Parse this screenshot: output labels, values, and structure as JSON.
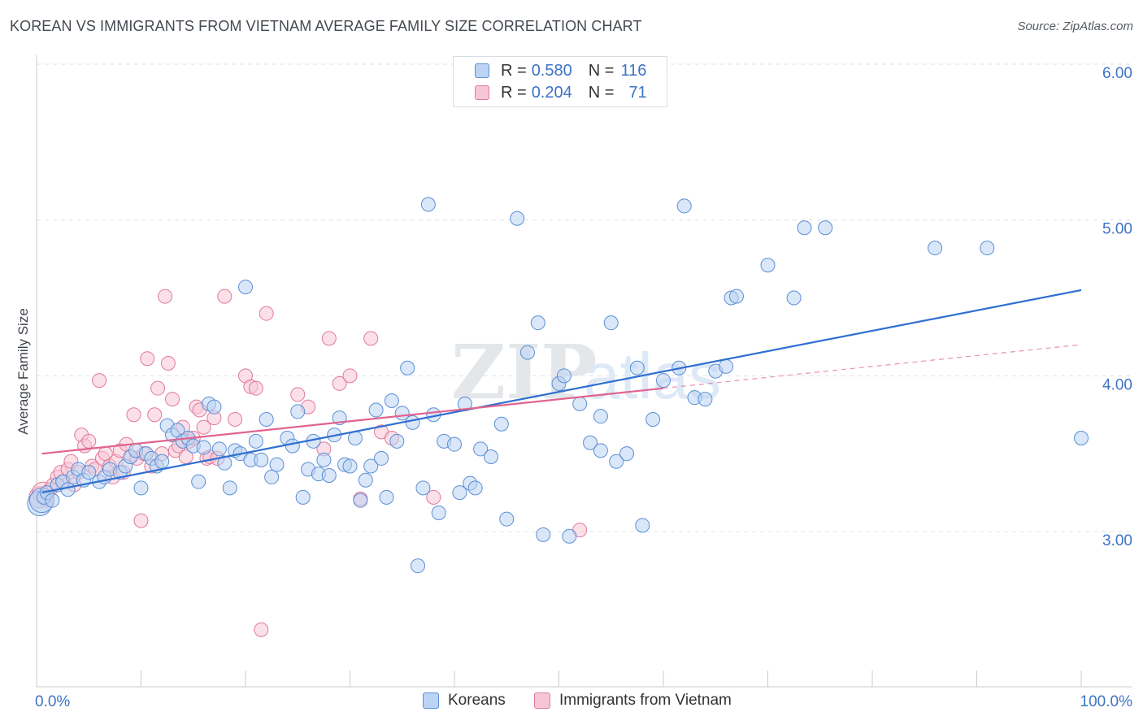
{
  "title": "KOREAN VS IMMIGRANTS FROM VIETNAM AVERAGE FAMILY SIZE CORRELATION CHART",
  "source": "Source: ZipAtlas.com",
  "legend": {
    "rows": [
      {
        "r_label": "R =",
        "r_value": "0.580",
        "n_label": "N =",
        "n_value": "116"
      },
      {
        "r_label": "R =",
        "r_value": "0.204",
        "n_label": "N =",
        "n_value": "71"
      }
    ]
  },
  "bottom_legend": [
    "Koreans",
    "Immigrants from Vietnam"
  ],
  "colors": {
    "blue_fill": "#bcd4f3",
    "blue_stroke": "#5b8fd6",
    "blue_line": "#2f6fd0",
    "pink_fill": "#f7c6d5",
    "pink_stroke": "#e07a9b",
    "pink_line": "#e0648f",
    "tick_label": "#3d73c5",
    "grid": "#dde1e6"
  },
  "chart_data": {
    "type": "scatter",
    "title": "KOREAN VS IMMIGRANTS FROM VIETNAM AVERAGE FAMILY SIZE CORRELATION CHART",
    "xlabel": "",
    "ylabel": "Average Family Size",
    "xlim": [
      0,
      100
    ],
    "ylim": [
      2.0,
      6.15
    ],
    "x_tick_labels": [
      "0.0%",
      "100.0%"
    ],
    "y_ticks": [
      3.0,
      4.0,
      5.0,
      6.0
    ],
    "y_tick_labels": [
      "3.00",
      "4.00",
      "5.00",
      "6.00"
    ],
    "grid": true,
    "legend_position": "top-center",
    "series": [
      {
        "name": "Koreans",
        "r": 0.58,
        "n": 116,
        "trend": {
          "x": [
            0.5,
            100
          ],
          "y": [
            3.25,
            4.55
          ]
        },
        "points": [
          [
            0.3,
            3.18
          ],
          [
            0.5,
            3.2
          ],
          [
            0.7,
            3.22
          ],
          [
            1,
            3.25
          ],
          [
            1.5,
            3.2
          ],
          [
            2,
            3.3
          ],
          [
            2.5,
            3.32
          ],
          [
            3,
            3.27
          ],
          [
            3.5,
            3.35
          ],
          [
            4,
            3.4
          ],
          [
            4.5,
            3.33
          ],
          [
            5,
            3.38
          ],
          [
            6,
            3.32
          ],
          [
            6.5,
            3.35
          ],
          [
            7,
            3.4
          ],
          [
            8,
            3.38
          ],
          [
            8.5,
            3.42
          ],
          [
            9,
            3.48
          ],
          [
            9.5,
            3.52
          ],
          [
            10,
            3.28
          ],
          [
            10.5,
            3.5
          ],
          [
            11,
            3.47
          ],
          [
            11.5,
            3.42
          ],
          [
            12,
            3.45
          ],
          [
            12.5,
            3.68
          ],
          [
            13,
            3.62
          ],
          [
            13.5,
            3.65
          ],
          [
            14,
            3.58
          ],
          [
            14.5,
            3.6
          ],
          [
            15,
            3.55
          ],
          [
            15.5,
            3.32
          ],
          [
            16,
            3.54
          ],
          [
            16.5,
            3.82
          ],
          [
            17,
            3.8
          ],
          [
            17.5,
            3.53
          ],
          [
            18,
            3.44
          ],
          [
            18.5,
            3.28
          ],
          [
            19,
            3.52
          ],
          [
            19.5,
            3.5
          ],
          [
            20,
            4.57
          ],
          [
            20.5,
            3.46
          ],
          [
            21,
            3.58
          ],
          [
            21.5,
            3.46
          ],
          [
            22,
            3.72
          ],
          [
            22.5,
            3.35
          ],
          [
            23,
            3.43
          ],
          [
            24,
            3.6
          ],
          [
            24.5,
            3.55
          ],
          [
            25,
            3.77
          ],
          [
            25.5,
            3.22
          ],
          [
            26,
            3.4
          ],
          [
            26.5,
            3.58
          ],
          [
            27,
            3.37
          ],
          [
            27.5,
            3.46
          ],
          [
            28,
            3.36
          ],
          [
            28.5,
            3.62
          ],
          [
            29,
            3.73
          ],
          [
            29.5,
            3.43
          ],
          [
            30,
            3.42
          ],
          [
            30.5,
            3.6
          ],
          [
            31,
            3.2
          ],
          [
            31.5,
            3.33
          ],
          [
            32,
            3.42
          ],
          [
            32.5,
            3.78
          ],
          [
            33,
            3.47
          ],
          [
            33.5,
            3.22
          ],
          [
            34,
            3.84
          ],
          [
            34.5,
            3.58
          ],
          [
            35,
            3.76
          ],
          [
            35.5,
            4.05
          ],
          [
            36,
            3.7
          ],
          [
            36.5,
            2.78
          ],
          [
            37,
            3.28
          ],
          [
            37.5,
            5.1
          ],
          [
            38,
            3.75
          ],
          [
            38.5,
            3.12
          ],
          [
            39,
            3.58
          ],
          [
            40,
            3.56
          ],
          [
            40.5,
            3.25
          ],
          [
            41,
            3.82
          ],
          [
            41.5,
            3.31
          ],
          [
            42,
            3.28
          ],
          [
            42.5,
            3.53
          ],
          [
            43.5,
            3.48
          ],
          [
            44.5,
            3.69
          ],
          [
            45,
            3.08
          ],
          [
            46,
            5.01
          ],
          [
            47,
            4.15
          ],
          [
            48,
            4.34
          ],
          [
            48.5,
            2.98
          ],
          [
            50,
            3.95
          ],
          [
            50.5,
            4.0
          ],
          [
            51,
            2.97
          ],
          [
            52,
            3.82
          ],
          [
            53,
            3.57
          ],
          [
            54,
            3.52
          ],
          [
            54,
            3.74
          ],
          [
            55,
            4.34
          ],
          [
            55.5,
            3.45
          ],
          [
            56.5,
            3.5
          ],
          [
            57.5,
            4.05
          ],
          [
            58,
            3.04
          ],
          [
            59,
            3.72
          ],
          [
            60,
            3.97
          ],
          [
            61.5,
            4.05
          ],
          [
            62,
            5.09
          ],
          [
            63,
            3.86
          ],
          [
            64,
            3.85
          ],
          [
            65,
            4.03
          ],
          [
            66,
            4.06
          ],
          [
            66.5,
            4.5
          ],
          [
            67,
            4.51
          ],
          [
            70,
            4.71
          ],
          [
            72.5,
            4.5
          ],
          [
            73.5,
            4.95
          ],
          [
            75.5,
            4.95
          ],
          [
            86,
            4.82
          ],
          [
            91,
            4.82
          ],
          [
            100,
            3.6
          ]
        ]
      },
      {
        "name": "Immigrants from Vietnam",
        "r": 0.204,
        "n": 71,
        "trend": {
          "x": [
            0.5,
            60
          ],
          "y": [
            3.5,
            3.92
          ],
          "dashed_extension": {
            "x": [
              60,
              100
            ],
            "y": [
              3.92,
              4.2
            ]
          }
        },
        "points": [
          [
            0.3,
            3.22
          ],
          [
            0.6,
            3.25
          ],
          [
            1,
            3.2
          ],
          [
            1.3,
            3.27
          ],
          [
            1.6,
            3.3
          ],
          [
            2,
            3.35
          ],
          [
            2.3,
            3.38
          ],
          [
            2.6,
            3.32
          ],
          [
            3,
            3.4
          ],
          [
            3.3,
            3.45
          ],
          [
            3.6,
            3.3
          ],
          [
            4,
            3.38
          ],
          [
            4.3,
            3.62
          ],
          [
            4.6,
            3.55
          ],
          [
            5,
            3.58
          ],
          [
            5.3,
            3.42
          ],
          [
            5.6,
            3.4
          ],
          [
            6,
            3.97
          ],
          [
            6.3,
            3.47
          ],
          [
            6.6,
            3.5
          ],
          [
            7,
            3.42
          ],
          [
            7.3,
            3.35
          ],
          [
            7.6,
            3.45
          ],
          [
            8,
            3.52
          ],
          [
            8.3,
            3.38
          ],
          [
            8.6,
            3.56
          ],
          [
            9,
            3.48
          ],
          [
            9.3,
            3.75
          ],
          [
            9.6,
            3.47
          ],
          [
            10,
            3.07
          ],
          [
            10.3,
            3.5
          ],
          [
            10.6,
            4.11
          ],
          [
            11,
            3.42
          ],
          [
            11.3,
            3.75
          ],
          [
            11.6,
            3.92
          ],
          [
            12,
            3.5
          ],
          [
            12.3,
            4.51
          ],
          [
            12.6,
            4.08
          ],
          [
            13,
            3.85
          ],
          [
            13.3,
            3.52
          ],
          [
            13.6,
            3.55
          ],
          [
            14,
            3.67
          ],
          [
            14.3,
            3.48
          ],
          [
            14.6,
            3.58
          ],
          [
            15,
            3.6
          ],
          [
            15.3,
            3.8
          ],
          [
            15.6,
            3.78
          ],
          [
            16,
            3.67
          ],
          [
            16.3,
            3.47
          ],
          [
            16.6,
            3.48
          ],
          [
            17,
            3.73
          ],
          [
            17.3,
            3.47
          ],
          [
            18,
            4.51
          ],
          [
            19,
            3.72
          ],
          [
            20,
            4.0
          ],
          [
            20.5,
            3.93
          ],
          [
            21,
            3.92
          ],
          [
            21.5,
            2.37
          ],
          [
            22,
            4.4
          ],
          [
            25,
            3.88
          ],
          [
            26,
            3.8
          ],
          [
            27.5,
            3.53
          ],
          [
            28,
            4.24
          ],
          [
            29,
            3.95
          ],
          [
            30,
            4.0
          ],
          [
            31,
            3.21
          ],
          [
            32,
            4.24
          ],
          [
            33,
            3.64
          ],
          [
            34,
            3.6
          ],
          [
            38,
            3.22
          ],
          [
            52,
            3.01
          ]
        ]
      }
    ]
  }
}
